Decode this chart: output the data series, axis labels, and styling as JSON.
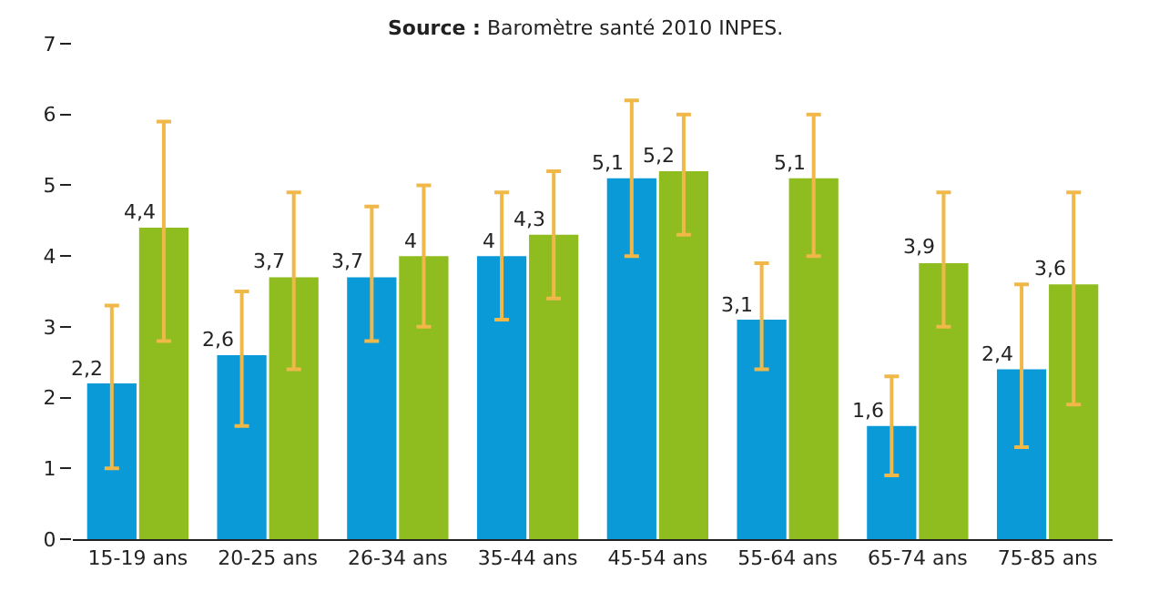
{
  "chart_data": {
    "type": "bar",
    "annotations": [
      "$^{}$Source : Baromètre santé 2010 INPES."
    ],
    "categories": [
      "15-19 ans",
      "20-25 ans",
      "26-34 ans",
      "35-44 ans",
      "45-54 ans",
      "55-64 ans",
      "65-74 ans",
      "75-85 ans"
    ],
    "series": [
      {
        "color": "#0a9ad8",
        "values": [
          2.2,
          2.6,
          3.7,
          4,
          5.1,
          3.1,
          1.6,
          2.4
        ],
        "value_labels": [
          "2,2",
          "2,6",
          "3,7",
          "4",
          "5,1",
          "3,1",
          "1,6",
          "2,4"
        ],
        "errors": [
          [
            1.0,
            3.3
          ],
          [
            1.6,
            3.5
          ],
          [
            2.8,
            4.7
          ],
          [
            3.1,
            4.9
          ],
          [
            4.0,
            6.2
          ],
          [
            2.4,
            3.9
          ],
          [
            0.9,
            2.3
          ],
          [
            1.3,
            3.6
          ]
        ]
      },
      {
        "color": "#8fbc1e",
        "values": [
          4.4,
          3.7,
          4,
          4.3,
          5.2,
          5.1,
          3.9,
          3.6
        ],
        "value_labels": [
          "4,4",
          "3,7",
          "4",
          "4,3",
          "5,2",
          "5,1",
          "3,9",
          "3,6"
        ],
        "errors": [
          [
            2.8,
            5.9
          ],
          [
            2.4,
            4.9
          ],
          [
            3.0,
            5.0
          ],
          [
            3.4,
            5.2
          ],
          [
            4.3,
            6.0
          ],
          [
            4.0,
            6.0
          ],
          [
            3.0,
            4.9
          ],
          [
            1.9,
            4.9
          ]
        ]
      }
    ],
    "ylim": [
      0,
      7
    ],
    "yticks": [
      0,
      1,
      2,
      3,
      4,
      5,
      6,
      7
    ]
  }
}
